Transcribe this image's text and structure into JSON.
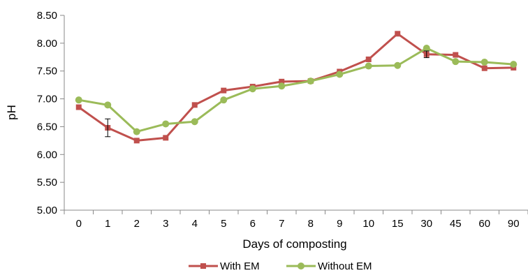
{
  "chart_data": {
    "type": "line",
    "xlabel": "Days of composting",
    "ylabel": "pH",
    "categories": [
      "0",
      "1",
      "2",
      "3",
      "4",
      "5",
      "6",
      "7",
      "8",
      "9",
      "10",
      "15",
      "30",
      "45",
      "60",
      "90"
    ],
    "yticks": [
      "5.00",
      "5.50",
      "6.00",
      "6.50",
      "7.00",
      "7.50",
      "8.00",
      "8.50"
    ],
    "ylim": [
      5.0,
      8.5
    ],
    "grid": false,
    "legend_position": "bottom",
    "series": [
      {
        "name": "With EM",
        "color": "#c0504d",
        "marker": "square",
        "values": [
          6.85,
          6.48,
          6.25,
          6.3,
          6.89,
          7.15,
          7.22,
          7.31,
          7.32,
          7.49,
          7.71,
          8.17,
          7.8,
          7.79,
          7.55,
          7.56
        ],
        "error": [
          0,
          0.16,
          0,
          0,
          0,
          0,
          0,
          0,
          0,
          0,
          0,
          0,
          0.06,
          0,
          0,
          0
        ]
      },
      {
        "name": "Without EM",
        "color": "#9bbb59",
        "marker": "circle",
        "values": [
          6.98,
          6.89,
          6.41,
          6.55,
          6.59,
          6.98,
          7.18,
          7.23,
          7.32,
          7.44,
          7.59,
          7.6,
          7.91,
          7.67,
          7.66,
          7.62
        ],
        "error": [
          0,
          0,
          0,
          0,
          0,
          0,
          0,
          0,
          0,
          0,
          0,
          0,
          0,
          0,
          0,
          0
        ]
      }
    ]
  }
}
